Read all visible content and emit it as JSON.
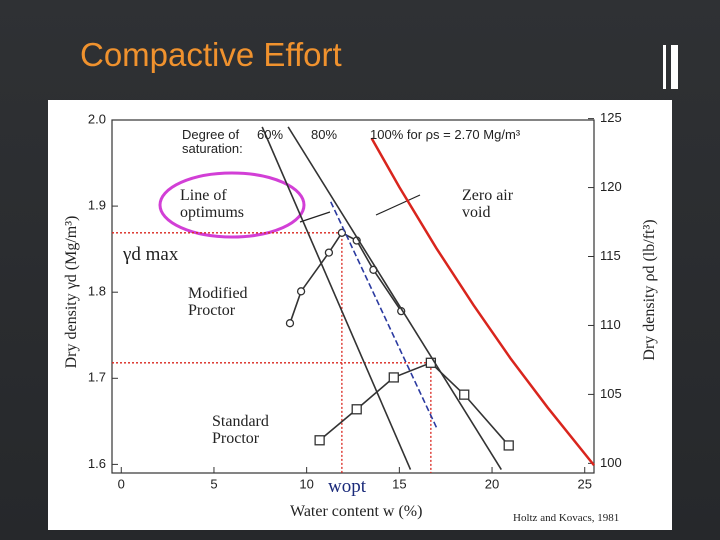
{
  "chart_data": {
    "type": "line",
    "title": "Compactive Effort",
    "x_label": "Water content w (%)",
    "y_label": "Dry density γd (Mg/m³)",
    "y2_label": "Dry density ρd (lb/ft³)",
    "source": "Holtz and Kovacs, 1981",
    "annotations": {
      "degree_of_saturation": "Degree of saturation:",
      "line_of_optimums": "Line of optimums",
      "zero_air_void": "Zero air void",
      "gamma_d_max": "γd max",
      "w_opt": "wopt"
    },
    "xlim": [
      -0.5,
      25.5
    ],
    "xticks": [
      0,
      5,
      10,
      15,
      20,
      25
    ],
    "ylim": [
      1.59,
      2.0
    ],
    "yticks": [
      {
        "value": 1.6,
        "label": "1.6"
      },
      1.7,
      1.8,
      1.9,
      {
        "value": 2.0,
        "label": "2.0"
      }
    ],
    "y2lim": [
      99.3,
      124.9
    ],
    "y2ticks": [
      100,
      105,
      110,
      115,
      120,
      125
    ],
    "series": [
      {
        "name": "Modified Proctor",
        "color": "#333333",
        "marker": "circle",
        "x": [
          9.1,
          9.7,
          11.2,
          11.9,
          12.7,
          13.6,
          15.1
        ],
        "values": [
          1.764,
          1.801,
          1.846,
          1.869,
          1.86,
          1.826,
          1.778
        ]
      },
      {
        "name": "Standard Proctor",
        "color": "#333333",
        "marker": "square",
        "x": [
          10.7,
          12.7,
          14.7,
          16.7,
          18.5,
          20.9
        ],
        "values": [
          1.628,
          1.664,
          1.701,
          1.718,
          1.681,
          1.622
        ]
      },
      {
        "name": "Line of optimums",
        "color": "#2b3aa0",
        "dashed": true,
        "x": [
          11.3,
          17.0
        ],
        "values": [
          1.905,
          1.643
        ]
      },
      {
        "name": "60%",
        "color": "#333333",
        "x": [
          7.6,
          15.6
        ],
        "values": [
          1.992,
          1.594
        ]
      },
      {
        "name": "80%",
        "color": "#333333",
        "x": [
          9.0,
          20.5
        ],
        "values": [
          1.992,
          1.594
        ]
      },
      {
        "name": "100% for ρs = 2.70 Mg/m³",
        "color": "#d9251d",
        "width": 2.5,
        "x": [
          13.5,
          15,
          17,
          19,
          21,
          23,
          25.5
        ],
        "values": [
          1.979,
          1.922,
          1.851,
          1.785,
          1.723,
          1.666,
          1.599
        ]
      }
    ],
    "guide_color": "#d9251d"
  }
}
